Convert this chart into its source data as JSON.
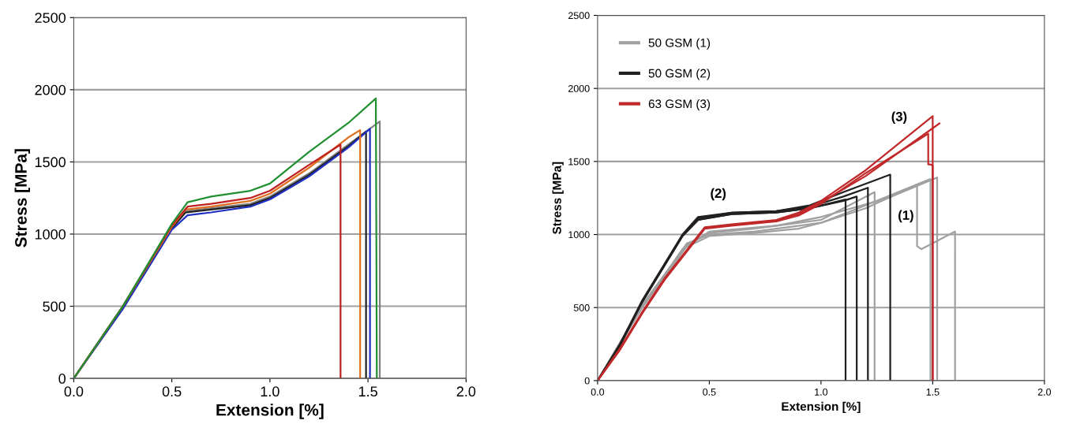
{
  "chart_data": [
    {
      "type": "line",
      "xlabel": "Extension [%]",
      "ylabel": "Stress [MPa]",
      "xlim": [
        0,
        2
      ],
      "xticks": [
        {
          "value": 0,
          "label": "0.0"
        },
        {
          "value": 0.5,
          "label": "0.5"
        },
        {
          "value": 1,
          "label": "1.0"
        },
        {
          "value": 1.5,
          "label": "1.5"
        },
        {
          "value": 2,
          "label": "2.0"
        }
      ],
      "ylim": [
        0,
        2500
      ],
      "yticks": [
        0,
        500,
        1000,
        1500,
        2000,
        2500
      ],
      "grid": "y",
      "legend": false,
      "marker": "none",
      "line_style": "solid",
      "series": [
        {
          "color": "#808080",
          "x": [
            0,
            0.25,
            0.5,
            0.57,
            0.7,
            0.9,
            1.0,
            1.2,
            1.4,
            1.56,
            1.56
          ],
          "values": [
            0,
            500,
            1050,
            1160,
            1180,
            1210,
            1260,
            1420,
            1620,
            1780,
            0
          ]
        },
        {
          "color": "#202020",
          "x": [
            0,
            0.25,
            0.5,
            0.57,
            0.7,
            0.9,
            1.0,
            1.2,
            1.4,
            1.49,
            1.49
          ],
          "values": [
            0,
            490,
            1040,
            1150,
            1170,
            1200,
            1250,
            1410,
            1610,
            1710,
            0
          ]
        },
        {
          "color": "#2030c0",
          "x": [
            0,
            0.25,
            0.5,
            0.58,
            0.7,
            0.9,
            1.0,
            1.2,
            1.4,
            1.51,
            1.51
          ],
          "values": [
            0,
            480,
            1030,
            1130,
            1150,
            1190,
            1240,
            1400,
            1600,
            1730,
            0
          ]
        },
        {
          "color": "#e07020",
          "x": [
            0,
            0.25,
            0.5,
            0.57,
            0.7,
            0.9,
            1.0,
            1.2,
            1.4,
            1.46,
            1.46
          ],
          "values": [
            0,
            500,
            1050,
            1170,
            1190,
            1230,
            1280,
            1460,
            1670,
            1720,
            0
          ]
        },
        {
          "color": "#c02020",
          "x": [
            0,
            0.25,
            0.5,
            0.58,
            0.7,
            0.9,
            1.0,
            1.2,
            1.36,
            1.36
          ],
          "values": [
            0,
            500,
            1060,
            1190,
            1210,
            1250,
            1300,
            1480,
            1620,
            0
          ]
        },
        {
          "color": "#209030",
          "x": [
            0,
            0.25,
            0.5,
            0.58,
            0.7,
            0.9,
            1.0,
            1.2,
            1.4,
            1.54,
            1.545
          ],
          "values": [
            0,
            500,
            1070,
            1220,
            1260,
            1300,
            1350,
            1570,
            1770,
            1940,
            0
          ]
        }
      ]
    },
    {
      "type": "line",
      "xlabel": "Extension [%]",
      "ylabel": "Stress [MPa]",
      "xlim": [
        0,
        2
      ],
      "xticks": [
        {
          "value": 0,
          "label": "0.0"
        },
        {
          "value": 0.5,
          "label": "0.5"
        },
        {
          "value": 1,
          "label": "1.0"
        },
        {
          "value": 1.5,
          "label": "1.5"
        },
        {
          "value": 2,
          "label": "2.0"
        }
      ],
      "ylim": [
        0,
        2500
      ],
      "yticks": [
        0,
        500,
        1000,
        1500,
        2000,
        2500
      ],
      "grid": "y",
      "legend": "top left",
      "marker": "none",
      "line_style": "solid",
      "annotations": [
        "(1)",
        "(2)",
        "(3)"
      ],
      "series": [
        {
          "name": "50 GSM (1)",
          "color": "#a0a0a0",
          "x": [
            0,
            0.2,
            0.38,
            0.5,
            0.7,
            0.9,
            1.0,
            1.2,
            1.49,
            1.49
          ],
          "values": [
            0,
            500,
            900,
            990,
            1010,
            1040,
            1080,
            1200,
            1380,
            0
          ]
        },
        {
          "color": "#a0a0a0",
          "x": [
            0,
            0.2,
            0.4,
            0.5,
            0.7,
            1.0,
            1.24,
            1.24
          ],
          "values": [
            0,
            520,
            930,
            1010,
            1040,
            1100,
            1290,
            0
          ]
        },
        {
          "color": "#a0a0a0",
          "x": [
            0,
            0.2,
            0.4,
            0.5,
            0.7,
            1.0,
            1.2,
            1.43,
            1.43,
            1.45,
            1.6,
            1.6
          ],
          "values": [
            0,
            510,
            940,
            1000,
            1020,
            1080,
            1180,
            1340,
            920,
            900,
            1020,
            0
          ]
        },
        {
          "color": "#a0a0a0",
          "x": [
            0,
            0.2,
            0.4,
            0.5,
            0.8,
            1.0,
            1.3,
            1.52,
            1.52
          ],
          "values": [
            0,
            500,
            920,
            1020,
            1060,
            1120,
            1250,
            1390,
            0
          ]
        },
        {
          "name": "50 GSM (2)",
          "color": "#202020",
          "x": [
            0,
            0.1,
            0.2,
            0.38,
            0.45,
            0.6,
            0.8,
            0.95,
            1.1,
            1.31,
            1.31
          ],
          "values": [
            0,
            250,
            550,
            1000,
            1120,
            1150,
            1160,
            1200,
            1290,
            1410,
            0
          ]
        },
        {
          "color": "#202020",
          "x": [
            0,
            0.1,
            0.2,
            0.38,
            0.45,
            0.6,
            0.8,
            0.95,
            1.11,
            1.11
          ],
          "values": [
            0,
            240,
            540,
            990,
            1100,
            1140,
            1150,
            1180,
            1240,
            0
          ]
        },
        {
          "color": "#202020",
          "x": [
            0,
            0.1,
            0.2,
            0.38,
            0.45,
            0.6,
            0.8,
            0.95,
            1.1,
            1.16,
            1.16
          ],
          "values": [
            0,
            240,
            540,
            990,
            1100,
            1140,
            1150,
            1180,
            1230,
            1260,
            0
          ]
        },
        {
          "color": "#202020",
          "x": [
            0,
            0.1,
            0.2,
            0.38,
            0.45,
            0.6,
            0.8,
            0.95,
            1.1,
            1.21,
            1.21
          ],
          "values": [
            0,
            240,
            540,
            990,
            1110,
            1150,
            1160,
            1190,
            1260,
            1320,
            0
          ]
        },
        {
          "name": "63 GSM (3)",
          "color": "#c0282a",
          "x": [
            0,
            0.1,
            0.2,
            0.3,
            0.48,
            0.6,
            0.8,
            0.9,
            1.0,
            1.2,
            1.5,
            1.5
          ],
          "values": [
            0,
            220,
            470,
            700,
            1050,
            1070,
            1100,
            1150,
            1230,
            1440,
            1810,
            0
          ]
        },
        {
          "color": "#c0282a",
          "x": [
            0,
            0.1,
            0.2,
            0.3,
            0.48,
            0.6,
            0.8,
            0.9,
            1.0,
            1.2,
            1.48,
            1.48,
            1.49,
            1.5,
            1.5
          ],
          "values": [
            0,
            210,
            460,
            690,
            1040,
            1060,
            1090,
            1130,
            1210,
            1420,
            1690,
            1480,
            1480,
            1470,
            0
          ]
        },
        {
          "color": "#c0282a",
          "x": [
            0,
            0.1,
            0.2,
            0.3,
            0.48,
            0.6,
            0.8,
            0.9,
            1.0,
            1.2,
            1.53
          ],
          "values": [
            0,
            215,
            465,
            695,
            1045,
            1065,
            1095,
            1140,
            1220,
            1400,
            1760
          ]
        }
      ]
    }
  ]
}
